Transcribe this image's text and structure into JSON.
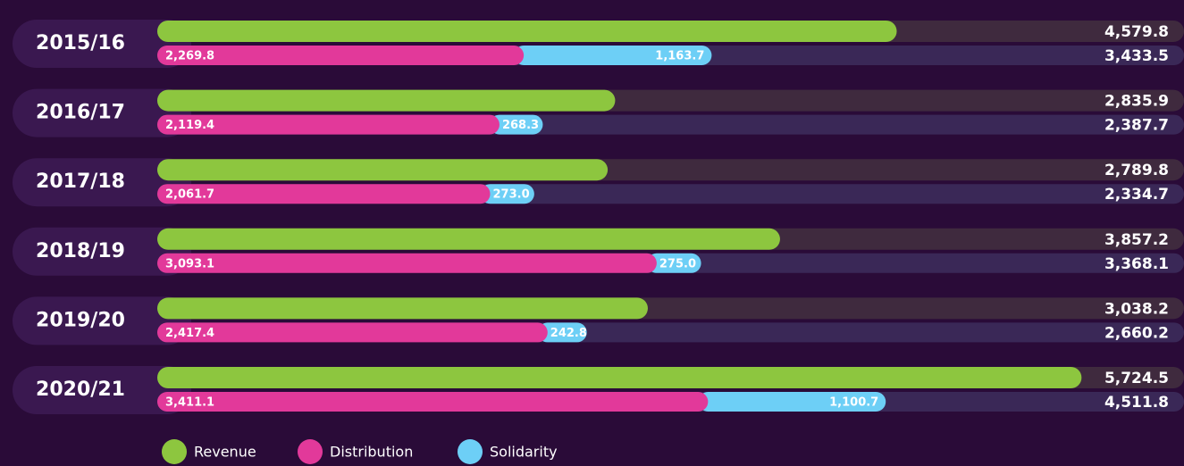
{
  "chart_data": {
    "type": "bar",
    "categories": [
      "2015/16",
      "2016/17",
      "2017/18",
      "2018/19",
      "2019/20",
      "2020/21"
    ],
    "xlim": [
      0,
      5800
    ],
    "series": [
      {
        "name": "Revenue",
        "color": "#8dc63f",
        "values": [
          4579.8,
          2835.9,
          2789.8,
          3857.2,
          3038.2,
          5724.5
        ],
        "value_labels": [
          "4,579.8",
          "2,835.9",
          "2,789.8",
          "3,857.2",
          "3,038.2",
          "5,724.5"
        ]
      },
      {
        "name": "Distribution",
        "color": "#e2399a",
        "values": [
          2269.8,
          2119.4,
          2061.7,
          3093.1,
          2417.4,
          3411.1
        ],
        "value_labels": [
          "2,269.8",
          "2,119.4",
          "2,061.7",
          "3,093.1",
          "2,417.4",
          "3,411.1"
        ]
      },
      {
        "name": "Solidarity",
        "color": "#6dcff6",
        "values": [
          1163.7,
          268.3,
          273.0,
          275.0,
          242.8,
          1100.7
        ],
        "value_labels": [
          "1,163.7",
          "268.3",
          "273.0",
          "275.0",
          "242.8",
          "1,100.7"
        ]
      }
    ],
    "totals": [
      {
        "value": 3433.5,
        "label": "3,433.5"
      },
      {
        "value": 2387.7,
        "label": "2,387.7"
      },
      {
        "value": 2334.7,
        "label": "2,334.7"
      },
      {
        "value": 3368.1,
        "label": "3,368.1"
      },
      {
        "value": 2660.2,
        "label": "2,660.2"
      },
      {
        "value": 4511.8,
        "label": "4,511.8"
      }
    ]
  }
}
